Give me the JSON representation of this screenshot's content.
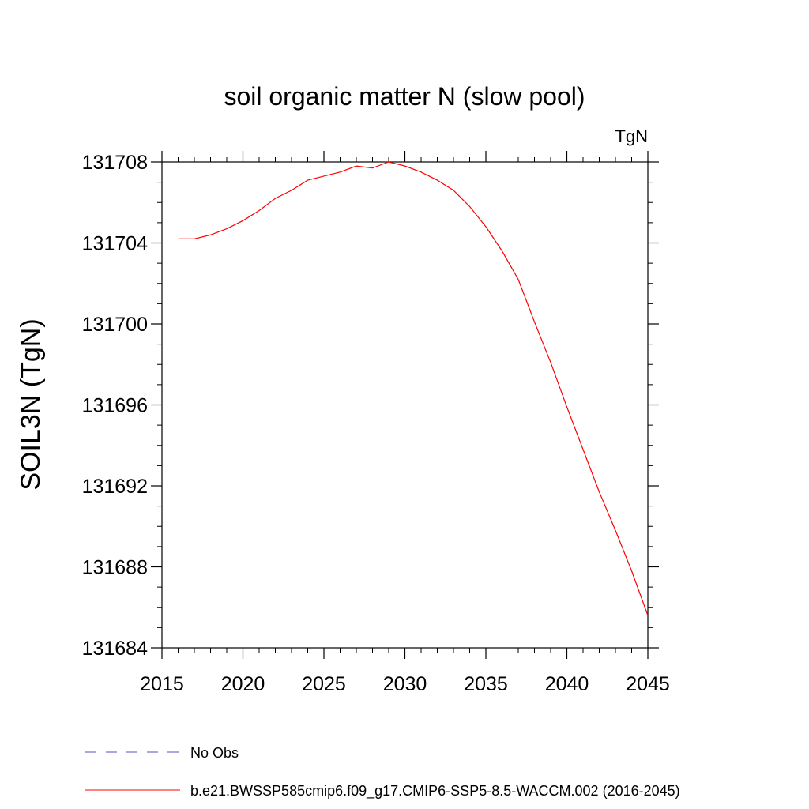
{
  "chart_data": {
    "type": "line",
    "title": "soil organic matter N (slow pool)",
    "units_label": "TgN",
    "ylabel": "SOIL3N  (TgN)",
    "xlabel": "",
    "xlim": [
      2015,
      2045
    ],
    "ylim": [
      131684,
      131708
    ],
    "x_ticks": [
      2015,
      2020,
      2025,
      2030,
      2035,
      2040,
      2045
    ],
    "y_ticks": [
      131684,
      131688,
      131692,
      131696,
      131700,
      131704,
      131708
    ],
    "x_minor_step": 1,
    "y_minor_step": 1,
    "grid": false,
    "legend_position": "bottom",
    "series": [
      {
        "name": "b.e21.BWSSP585cmip6.f09_g17.CMIP6-SSP5-8.5-WACCM.002 (2016-2045)",
        "color": "#ff0000",
        "dash": "solid",
        "x": [
          2016,
          2017,
          2018,
          2019,
          2020,
          2021,
          2022,
          2023,
          2024,
          2025,
          2026,
          2027,
          2028,
          2029,
          2030,
          2031,
          2032,
          2033,
          2034,
          2035,
          2036,
          2037,
          2038,
          2039,
          2040,
          2041,
          2042,
          2043,
          2044,
          2045
        ],
        "values": [
          131704.2,
          131704.2,
          131704.4,
          131704.7,
          131705.1,
          131705.6,
          131706.2,
          131706.6,
          131707.1,
          131707.3,
          131707.5,
          131707.8,
          131707.7,
          131708.0,
          131707.8,
          131707.5,
          131707.1,
          131706.6,
          131705.8,
          131704.8,
          131703.6,
          131702.2,
          131700.1,
          131698.1,
          131695.9,
          131693.8,
          131691.7,
          131689.8,
          131687.8,
          131685.6
        ]
      },
      {
        "name": "No Obs",
        "color": "#5050c8",
        "dash": "dashed",
        "x": [],
        "values": []
      }
    ],
    "legend": [
      {
        "label": "No Obs",
        "color": "#5050c8",
        "dash": "dashed"
      },
      {
        "label": "b.e21.BWSSP585cmip6.f09_g17.CMIP6-SSP5-8.5-WACCM.002 (2016-2045)",
        "color": "#ff0000",
        "dash": "solid"
      }
    ]
  }
}
